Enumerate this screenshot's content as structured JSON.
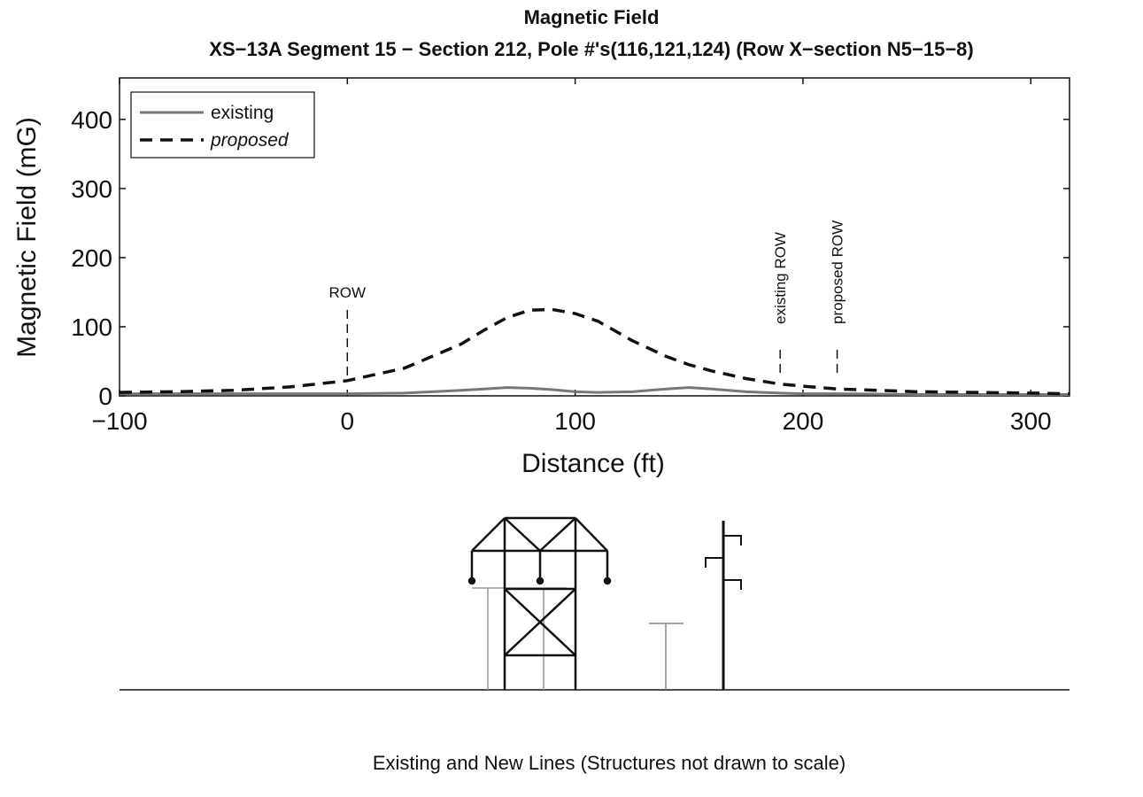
{
  "chart_data": {
    "type": "line",
    "title": "Magnetic Field",
    "subtitle": "XS−13A Segment 15 − Section 212, Pole #'s(116,121,124) (Row X−section N5−15−8)",
    "x_label": "Distance (ft)",
    "y_label": "Magnetic Field (mG)",
    "x": [
      -100,
      -75,
      -50,
      -25,
      0,
      25,
      50,
      60,
      70,
      80,
      90,
      100,
      110,
      125,
      140,
      150,
      160,
      175,
      190,
      200,
      215,
      250,
      275,
      300,
      317
    ],
    "series": [
      {
        "name": "existing",
        "color": "#777777",
        "dash": "solid",
        "values": [
          3,
          3,
          3,
          3,
          3,
          4,
          8,
          10,
          12,
          11,
          9,
          6,
          5,
          6,
          10,
          12,
          10,
          6,
          4,
          3,
          3,
          2,
          2,
          2,
          2
        ]
      },
      {
        "name": "proposed",
        "color": "#111111",
        "dash": "dashed",
        "values": [
          5,
          6,
          8,
          13,
          22,
          40,
          75,
          95,
          113,
          124,
          125,
          119,
          108,
          80,
          57,
          45,
          36,
          25,
          17,
          14,
          10,
          6,
          5,
          4,
          3
        ]
      }
    ],
    "annotations": [
      {
        "text": "ROW",
        "x": 0,
        "rotated": false
      },
      {
        "text": "existing ROW",
        "x": 190,
        "rotated": true
      },
      {
        "text": "proposed ROW",
        "x": 215,
        "rotated": true
      }
    ],
    "xlim": [
      -100,
      317
    ],
    "ylim": [
      0,
      460
    ],
    "xticks": [
      {
        "value": -100,
        "label": "−100"
      },
      0,
      100,
      200,
      300
    ],
    "yticks": [
      0,
      100,
      200,
      300,
      400
    ],
    "legend": "upper left",
    "grid": false,
    "caption": "Existing and New Lines (Structures not drawn to scale)"
  }
}
